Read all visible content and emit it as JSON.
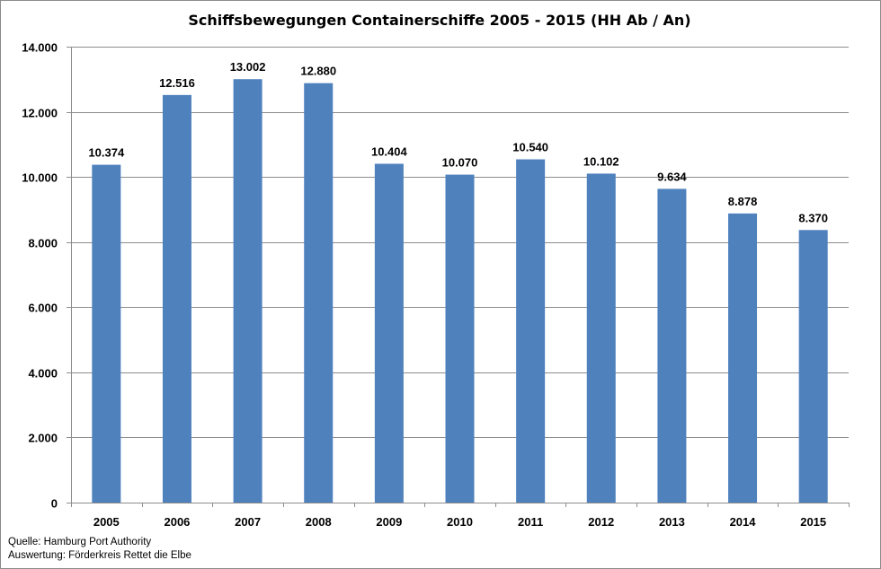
{
  "chart_data": {
    "type": "bar",
    "title": "Schiffsbewegungen  Containerschiffe 2005 - 2015 (HH Ab / An)",
    "xlabel": "",
    "ylabel": "",
    "categories": [
      "2005",
      "2006",
      "2007",
      "2008",
      "2009",
      "2010",
      "2011",
      "2012",
      "2013",
      "2014",
      "2015"
    ],
    "values": [
      10374,
      12516,
      13002,
      12880,
      10404,
      10070,
      10540,
      10102,
      9634,
      8878,
      8370
    ],
    "value_labels": [
      "10.374",
      "12.516",
      "13.002",
      "12.880",
      "10.404",
      "10.070",
      "10.540",
      "10.102",
      "9.634",
      "8.878",
      "8.370"
    ],
    "ylim": [
      0,
      14000
    ],
    "yticks": [
      0,
      2000,
      4000,
      6000,
      8000,
      10000,
      12000,
      14000
    ],
    "ytick_labels": [
      "0",
      "2.000",
      "4.000",
      "6.000",
      "8.000",
      "10.000",
      "12.000",
      "14.000"
    ],
    "grid": true,
    "legend": "none",
    "bar_color": "#4f81bd"
  },
  "source": {
    "line1": "Quelle: Hamburg Port Authority",
    "line2": "Auswertung: Förderkreis Rettet die Elbe"
  }
}
